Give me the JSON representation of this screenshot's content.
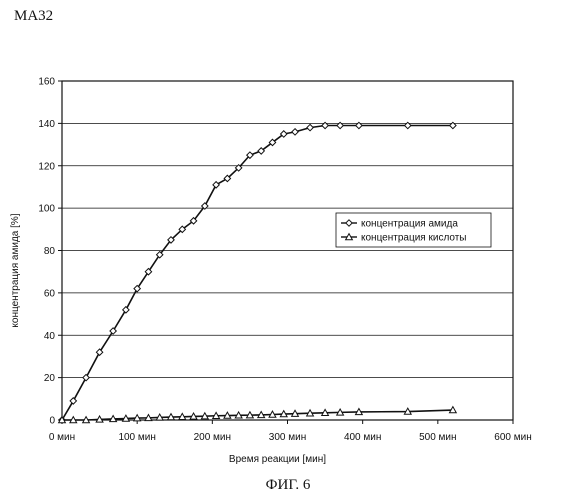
{
  "header": {
    "label": "MA32"
  },
  "figure": {
    "caption": "ФИГ. 6"
  },
  "chart_data": {
    "type": "line",
    "title": "",
    "xlabel": "Время реакции [мин]",
    "ylabel": "концентрация амида [%]",
    "xlim": [
      0,
      600
    ],
    "ylim": [
      0,
      160
    ],
    "x_ticks": [
      0,
      100,
      200,
      300,
      400,
      500,
      600
    ],
    "x_tick_labels": [
      "0 мин",
      "100 мин",
      "200 мин",
      "300 мин",
      "400 мин",
      "500 мин",
      "600 мин"
    ],
    "y_ticks": [
      0,
      20,
      40,
      60,
      80,
      100,
      120,
      140,
      160
    ],
    "y_tick_labels": [
      "0",
      "20",
      "40",
      "60",
      "80",
      "100",
      "120",
      "140",
      "160"
    ],
    "grid": "horizontal",
    "legend_position": "right",
    "series": [
      {
        "name": "концентрация амида",
        "marker": "diamond",
        "x": [
          0,
          15,
          32,
          50,
          68,
          85,
          100,
          115,
          130,
          145,
          160,
          175,
          190,
          205,
          220,
          235,
          250,
          265,
          280,
          295,
          310,
          330,
          350,
          370,
          395,
          460,
          520
        ],
        "y": [
          0,
          9,
          20,
          32,
          42,
          52,
          62,
          70,
          78,
          85,
          90,
          94,
          101,
          111,
          114,
          119,
          125,
          127,
          131,
          135,
          136,
          138,
          139,
          139,
          139,
          139,
          139
        ]
      },
      {
        "name": "концентрация кислоты",
        "marker": "triangle",
        "x": [
          0,
          15,
          32,
          50,
          68,
          85,
          100,
          115,
          130,
          145,
          160,
          175,
          190,
          205,
          220,
          235,
          250,
          265,
          280,
          295,
          310,
          330,
          350,
          370,
          395,
          460,
          520
        ],
        "y": [
          0,
          0,
          0,
          0.3,
          0.5,
          0.7,
          0.9,
          1,
          1.2,
          1.4,
          1.5,
          1.7,
          1.8,
          2,
          2.1,
          2.2,
          2.3,
          2.4,
          2.6,
          2.8,
          3,
          3.2,
          3.4,
          3.6,
          3.8,
          4,
          4.7
        ]
      }
    ]
  }
}
